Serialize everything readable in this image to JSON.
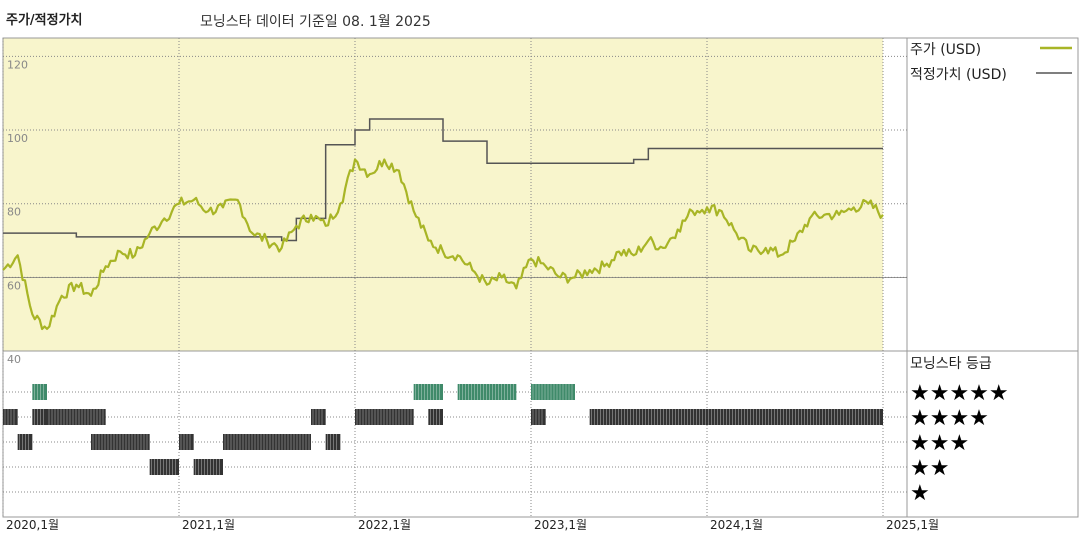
{
  "header": {
    "title": "주가/적정가치",
    "subtitle": "모닝스타 데이터 기준일 08. 1월 2025"
  },
  "legend": {
    "price_label": "주가 (USD)",
    "fair_label": "적정가치 (USD)",
    "rating_title": "모닝스타 등급"
  },
  "colors": {
    "price_line": "#a8b526",
    "fair_line": "#555555",
    "plot_bg": "#f8f5cc",
    "green_bar": "#3f8a6a",
    "black_bar": "#333333"
  },
  "chart_data": [
    {
      "type": "line",
      "x_axis": "date",
      "ylim": [
        40,
        125
      ],
      "yticks": [
        "120",
        "100",
        "80",
        "60",
        "40"
      ],
      "xticks": [
        "2020,1월",
        "2021,1월",
        "2022,1월",
        "2023,1월",
        "2024,1월",
        "2025,1월"
      ],
      "series": [
        {
          "name": "주가 (USD)",
          "points": [
            [
              "2020-01",
              62
            ],
            [
              "2020-02",
              66
            ],
            [
              "2020-03",
              50
            ],
            [
              "2020-04",
              46
            ],
            [
              "2020-05",
              55
            ],
            [
              "2020-06",
              58
            ],
            [
              "2020-07",
              55
            ],
            [
              "2020-08",
              63
            ],
            [
              "2020-09",
              67
            ],
            [
              "2020-10",
              66
            ],
            [
              "2020-11",
              72
            ],
            [
              "2020-12",
              76
            ],
            [
              "2021-01",
              80
            ],
            [
              "2021-02",
              81
            ],
            [
              "2021-03",
              78
            ],
            [
              "2021-04",
              79
            ],
            [
              "2021-05",
              81
            ],
            [
              "2021-06",
              72
            ],
            [
              "2021-07",
              70
            ],
            [
              "2021-08",
              68
            ],
            [
              "2021-09",
              74
            ],
            [
              "2021-10",
              77
            ],
            [
              "2021-11",
              74
            ],
            [
              "2021-12",
              80
            ],
            [
              "2022-01",
              92
            ],
            [
              "2022-02",
              88
            ],
            [
              "2022-03",
              92
            ],
            [
              "2022-04",
              89
            ],
            [
              "2022-05",
              78
            ],
            [
              "2022-06",
              70
            ],
            [
              "2022-07",
              67
            ],
            [
              "2022-08",
              66
            ],
            [
              "2022-09",
              62
            ],
            [
              "2022-10",
              58
            ],
            [
              "2022-11",
              60
            ],
            [
              "2022-12",
              57
            ],
            [
              "2023-01",
              65
            ],
            [
              "2023-02",
              63
            ],
            [
              "2023-03",
              60
            ],
            [
              "2023-04",
              60
            ],
            [
              "2023-05",
              62
            ],
            [
              "2023-06",
              63
            ],
            [
              "2023-07",
              67
            ],
            [
              "2023-08",
              66
            ],
            [
              "2023-09",
              70
            ],
            [
              "2023-10",
              68
            ],
            [
              "2023-11",
              73
            ],
            [
              "2023-12",
              78
            ],
            [
              "2024-01",
              79
            ],
            [
              "2024-02",
              78
            ],
            [
              "2024-03",
              72
            ],
            [
              "2024-04",
              67
            ],
            [
              "2024-05",
              68
            ],
            [
              "2024-06",
              66
            ],
            [
              "2024-07",
              70
            ],
            [
              "2024-08",
              76
            ],
            [
              "2024-09",
              77
            ],
            [
              "2024-10",
              77
            ],
            [
              "2024-11",
              79
            ],
            [
              "2024-12",
              80
            ],
            [
              "2025-01",
              77
            ]
          ]
        },
        {
          "name": "적정가치 (USD)",
          "step": true,
          "points": [
            [
              "2020-01",
              72
            ],
            [
              "2020-06",
              71
            ],
            [
              "2021-03",
              71
            ],
            [
              "2021-08",
              70
            ],
            [
              "2021-09",
              76
            ],
            [
              "2021-11",
              96
            ],
            [
              "2022-01",
              100
            ],
            [
              "2022-02",
              103
            ],
            [
              "2022-07",
              97
            ],
            [
              "2022-10",
              91
            ],
            [
              "2023-08",
              92
            ],
            [
              "2023-09",
              95
            ],
            [
              "2025-01",
              95
            ]
          ]
        }
      ]
    },
    {
      "type": "rating_timeline",
      "levels": [
        "★★★★★",
        "★★★★",
        "★★★",
        "★★",
        "★"
      ],
      "segments": [
        {
          "stars": 5,
          "start": "2020-03",
          "end": "2020-04"
        },
        {
          "stars": 5,
          "start": "2022-05",
          "end": "2022-07"
        },
        {
          "stars": 5,
          "start": "2022-08",
          "end": "2022-12"
        },
        {
          "stars": 5,
          "start": "2023-01",
          "end": "2023-04"
        },
        {
          "stars": 4,
          "start": "2020-01",
          "end": "2020-02"
        },
        {
          "stars": 4,
          "start": "2020-03",
          "end": "2020-04"
        },
        {
          "stars": 4,
          "start": "2020-04",
          "end": "2020-08"
        },
        {
          "stars": 4,
          "start": "2021-10",
          "end": "2021-11"
        },
        {
          "stars": 4,
          "start": "2022-01",
          "end": "2022-05"
        },
        {
          "stars": 4,
          "start": "2022-06",
          "end": "2022-07"
        },
        {
          "stars": 4,
          "start": "2023-01",
          "end": "2023-02"
        },
        {
          "stars": 4,
          "start": "2023-05",
          "end": "2025-01"
        },
        {
          "stars": 3,
          "start": "2020-02",
          "end": "2020-03"
        },
        {
          "stars": 3,
          "start": "2020-07",
          "end": "2020-11"
        },
        {
          "stars": 3,
          "start": "2021-01",
          "end": "2021-02"
        },
        {
          "stars": 3,
          "start": "2021-04",
          "end": "2021-10"
        },
        {
          "stars": 3,
          "start": "2021-11",
          "end": "2021-12"
        },
        {
          "stars": 2,
          "start": "2020-11",
          "end": "2021-01"
        },
        {
          "stars": 2,
          "start": "2021-02",
          "end": "2021-04"
        }
      ]
    }
  ]
}
